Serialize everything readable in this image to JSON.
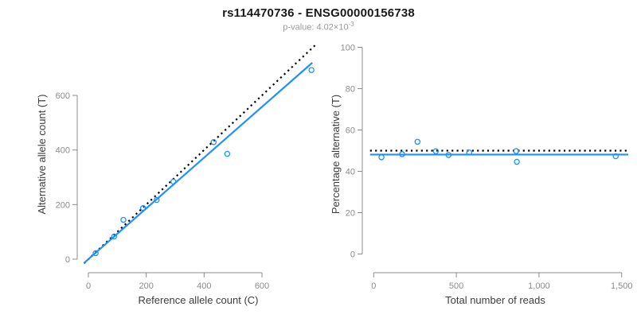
{
  "header": {
    "title": "rs114470736 - ENSG00000156738",
    "pvalue_prefix": "p-value: 4.02×10",
    "pvalue_exponent": "-3"
  },
  "colors": {
    "point_blue": "#1e90ff",
    "fit_blue": "#1e90ff",
    "dotted_black": "#000000",
    "axis_gray": "#8c8c8c",
    "tick_text_gray": "#8c8c8c",
    "axis_label_dark": "#3d3d3d",
    "title_black": "#1a1a1a",
    "subtitle_gray": "#9a9a9a"
  },
  "chart_data": [
    {
      "type": "scatter",
      "panel": "left",
      "xlabel": "Reference allele count (C)",
      "ylabel": "Alternative allele count (T)",
      "xlim": [
        0,
        600
      ],
      "ylim": [
        0,
        600
      ],
      "xtick_values": [
        0,
        200,
        400,
        600
      ],
      "xtick_labels": [
        "0",
        "200",
        "400",
        "600"
      ],
      "ytick_values": [
        0,
        200,
        400,
        600
      ],
      "ytick_labels": [
        "0",
        "200",
        "400",
        "600"
      ],
      "grid": false,
      "points": [
        [
          25,
          22
        ],
        [
          89,
          83
        ],
        [
          121,
          144
        ],
        [
          189,
          187
        ],
        [
          236,
          217
        ],
        [
          294,
          284
        ],
        [
          433,
          429
        ],
        [
          480,
          386
        ],
        [
          771,
          693
        ]
      ],
      "identity_line": {
        "slope": 1,
        "intercept": 0,
        "style": "dotted",
        "color_key": "dotted_black"
      },
      "fit_line": {
        "slope": 0.93,
        "intercept": 0,
        "style": "solid",
        "color_key": "fit_blue"
      }
    },
    {
      "type": "scatter",
      "panel": "right",
      "xlabel": "Total number of reads",
      "ylabel": "Percentage alternative (T)",
      "xlim": [
        0,
        1500
      ],
      "ylim": [
        0,
        100
      ],
      "xtick_values": [
        0,
        500,
        1000,
        1500
      ],
      "xtick_labels": [
        "0",
        "500",
        "1,000",
        "1,500"
      ],
      "ytick_values": [
        0,
        20,
        40,
        60,
        80,
        100
      ],
      "ytick_labels": [
        "0",
        "20",
        "40",
        "60",
        "80",
        "100"
      ],
      "grid": false,
      "points": [
        [
          47,
          46.8
        ],
        [
          172,
          48.3
        ],
        [
          265,
          54.3
        ],
        [
          376,
          49.7
        ],
        [
          453,
          47.9
        ],
        [
          578,
          49.1
        ],
        [
          862,
          49.8
        ],
        [
          866,
          44.6
        ],
        [
          1464,
          47.3
        ]
      ],
      "null_line": {
        "y": 50,
        "style": "dotted",
        "color_key": "dotted_black"
      },
      "fit_line": {
        "y": 48.1,
        "style": "solid",
        "color_key": "fit_blue"
      }
    }
  ]
}
